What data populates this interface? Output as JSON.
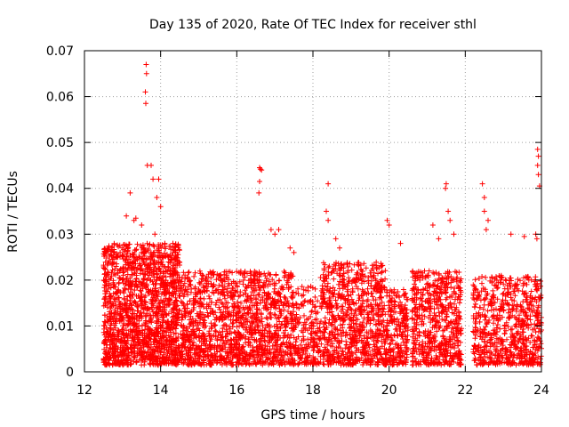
{
  "chart_data": {
    "type": "scatter",
    "title": "Day 135 of 2020, Rate Of TEC Index for receiver sthl",
    "xlabel": "GPS time / hours",
    "ylabel": "ROTI / TECUs",
    "xlim": [
      12,
      24
    ],
    "ylim": [
      0,
      0.07
    ],
    "xticks": [
      12,
      14,
      16,
      18,
      20,
      22,
      24
    ],
    "xtick_labels": [
      "12",
      "14",
      "16",
      "18",
      "20",
      "22",
      "24"
    ],
    "yticks": [
      0,
      0.01,
      0.02,
      0.03,
      0.04,
      0.05,
      0.06,
      0.07
    ],
    "ytick_labels": [
      "0",
      "0.01",
      "0.02",
      "0.03",
      "0.04",
      "0.05",
      "0.06",
      "0.07"
    ],
    "grid": true,
    "marker": "+",
    "color": "#ff0000",
    "series": [
      {
        "name": "ROTI",
        "density_profile": [
          {
            "from": 12.5,
            "to": 14.5,
            "typical_max": 0.028,
            "count": 1600
          },
          {
            "from": 14.5,
            "to": 16.0,
            "typical_max": 0.022,
            "count": 700
          },
          {
            "from": 16.0,
            "to": 17.5,
            "typical_max": 0.022,
            "count": 700
          },
          {
            "from": 17.5,
            "to": 18.2,
            "typical_max": 0.019,
            "count": 200
          },
          {
            "from": 18.2,
            "to": 19.9,
            "typical_max": 0.024,
            "count": 800
          },
          {
            "from": 19.9,
            "to": 20.5,
            "typical_max": 0.018,
            "count": 250
          },
          {
            "from": 20.6,
            "to": 21.9,
            "typical_max": 0.022,
            "count": 600
          },
          {
            "from": 22.2,
            "to": 24.0,
            "typical_max": 0.021,
            "count": 700
          }
        ],
        "points": [
          [
            13.62,
            0.067
          ],
          [
            13.63,
            0.065
          ],
          [
            13.6,
            0.061
          ],
          [
            13.61,
            0.0585
          ],
          [
            13.65,
            0.045
          ],
          [
            13.75,
            0.045
          ],
          [
            13.8,
            0.042
          ],
          [
            13.95,
            0.042
          ],
          [
            13.9,
            0.038
          ],
          [
            14.0,
            0.036
          ],
          [
            13.2,
            0.039
          ],
          [
            13.1,
            0.034
          ],
          [
            13.3,
            0.033
          ],
          [
            13.35,
            0.0335
          ],
          [
            13.5,
            0.032
          ],
          [
            13.85,
            0.03
          ],
          [
            16.6,
            0.0445
          ],
          [
            16.62,
            0.0442
          ],
          [
            16.65,
            0.044
          ],
          [
            16.6,
            0.0415
          ],
          [
            16.58,
            0.039
          ],
          [
            16.9,
            0.031
          ],
          [
            17.0,
            0.03
          ],
          [
            17.1,
            0.031
          ],
          [
            17.4,
            0.027
          ],
          [
            17.5,
            0.026
          ],
          [
            18.4,
            0.041
          ],
          [
            18.35,
            0.035
          ],
          [
            18.4,
            0.033
          ],
          [
            18.6,
            0.029
          ],
          [
            18.7,
            0.027
          ],
          [
            19.95,
            0.033
          ],
          [
            20.0,
            0.032
          ],
          [
            20.3,
            0.028
          ],
          [
            21.15,
            0.032
          ],
          [
            21.5,
            0.041
          ],
          [
            21.48,
            0.04
          ],
          [
            21.55,
            0.035
          ],
          [
            21.6,
            0.033
          ],
          [
            21.7,
            0.03
          ],
          [
            21.3,
            0.029
          ],
          [
            22.45,
            0.041
          ],
          [
            22.5,
            0.038
          ],
          [
            22.5,
            0.035
          ],
          [
            22.6,
            0.033
          ],
          [
            22.55,
            0.031
          ],
          [
            23.2,
            0.03
          ],
          [
            23.55,
            0.0295
          ],
          [
            23.9,
            0.0485
          ],
          [
            23.92,
            0.047
          ],
          [
            23.9,
            0.045
          ],
          [
            23.92,
            0.043
          ],
          [
            23.95,
            0.0405
          ],
          [
            23.85,
            0.03
          ],
          [
            23.88,
            0.029
          ]
        ]
      }
    ]
  }
}
